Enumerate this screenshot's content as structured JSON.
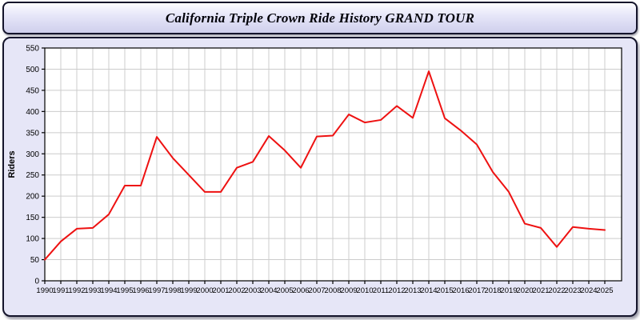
{
  "header": {
    "title": "California Triple Crown Ride History GRAND TOUR"
  },
  "chart_data": {
    "type": "line",
    "title": "California Triple Crown Ride History GRAND TOUR",
    "xlabel": "",
    "ylabel": "Riders",
    "x": [
      1990,
      1991,
      1992,
      1993,
      1994,
      1995,
      1996,
      1997,
      1998,
      1999,
      2000,
      2001,
      2002,
      2003,
      2004,
      2005,
      2006,
      2007,
      2008,
      2009,
      2010,
      2011,
      2012,
      2013,
      2014,
      2015,
      2016,
      2017,
      2018,
      2019,
      2020,
      2021,
      2022,
      2023,
      2024,
      2025
    ],
    "series": [
      {
        "name": "Riders",
        "values": [
          50,
          93,
          123,
          125,
          157,
          225,
          225,
          340,
          290,
          250,
          210,
          210,
          267,
          281,
          342,
          308,
          267,
          341,
          343,
          393,
          374,
          380,
          413,
          385,
          495,
          384,
          355,
          322,
          257,
          210,
          135,
          125,
          80,
          127,
          123,
          120
        ]
      }
    ],
    "ylim": [
      0,
      550
    ],
    "y_ticks": [
      0,
      50,
      100,
      150,
      200,
      250,
      300,
      350,
      400,
      450,
      500,
      550
    ],
    "grid": true,
    "legend": "none",
    "colors": {
      "line": "#ee1111",
      "grid": "#cccccc",
      "plot_bg": "#ffffff",
      "panel_bg": "#e6e6f7",
      "frame": "#000000",
      "text": "#000000"
    }
  }
}
